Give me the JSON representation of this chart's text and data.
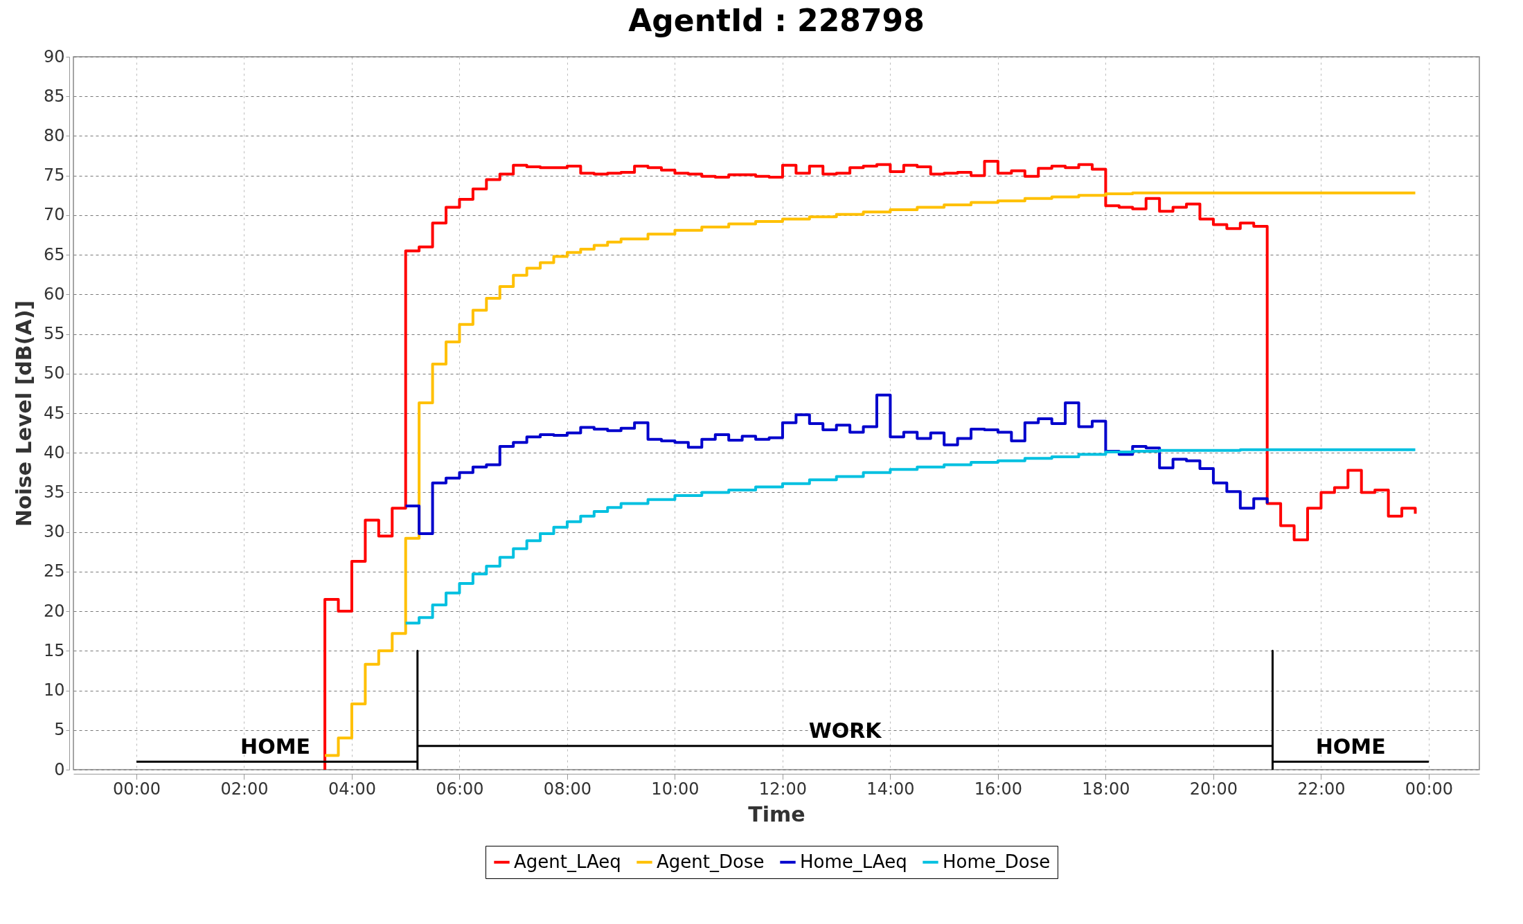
{
  "chart_data": {
    "type": "step",
    "title": "AgentId : 228798",
    "xlabel": "Time",
    "ylabel": "Noise Level [dB(A)]",
    "xlim": [
      -1.17,
      24.94
    ],
    "xticks": [
      {
        "value": 0,
        "label": "00:00"
      },
      {
        "value": 2,
        "label": "02:00"
      },
      {
        "value": 4,
        "label": "04:00"
      },
      {
        "value": 6,
        "label": "06:00"
      },
      {
        "value": 8,
        "label": "08:00"
      },
      {
        "value": 10,
        "label": "10:00"
      },
      {
        "value": 12,
        "label": "12:00"
      },
      {
        "value": 14,
        "label": "14:00"
      },
      {
        "value": 16,
        "label": "16:00"
      },
      {
        "value": 18,
        "label": "18:00"
      },
      {
        "value": 20,
        "label": "20:00"
      },
      {
        "value": 22,
        "label": "22:00"
      },
      {
        "value": 24,
        "label": "00:00"
      }
    ],
    "ylim": [
      0,
      90
    ],
    "yticks": [
      0,
      5,
      10,
      15,
      20,
      25,
      30,
      35,
      40,
      45,
      50,
      55,
      60,
      65,
      70,
      75,
      80,
      85,
      90
    ],
    "grid": true,
    "legend": "bottom",
    "line_style": "solid",
    "series": [
      {
        "name": "Agent_LAeq",
        "color": "#ff0000",
        "x": [
          3.5,
          3.5,
          3.75,
          4,
          4.25,
          4.5,
          4.75,
          5,
          5.25,
          5.5,
          5.75,
          6,
          6.25,
          6.5,
          6.75,
          7,
          7.25,
          7.5,
          7.75,
          8,
          8.25,
          8.5,
          8.75,
          9,
          9.25,
          9.5,
          9.75,
          10,
          10.25,
          10.5,
          10.75,
          11,
          11.25,
          11.5,
          11.75,
          12,
          12.25,
          12.5,
          12.75,
          13,
          13.25,
          13.5,
          13.75,
          14,
          14.25,
          14.5,
          14.75,
          15,
          15.25,
          15.5,
          15.75,
          16,
          16.25,
          16.5,
          16.75,
          17,
          17.25,
          17.5,
          17.75,
          18,
          18.25,
          18.5,
          18.75,
          19,
          19.25,
          19.5,
          19.75,
          20,
          20.25,
          20.5,
          20.75,
          21,
          21.25,
          21.5,
          21.75,
          22,
          22.25,
          22.5,
          22.75,
          23,
          23.25,
          23.5,
          23.75
        ],
        "values": [
          0,
          21.5,
          20,
          26.3,
          31.5,
          29.5,
          33,
          65.5,
          66,
          69,
          71,
          72,
          73.3,
          74.5,
          75.2,
          76.3,
          76.1,
          76,
          76,
          76.2,
          75.3,
          75.2,
          75.3,
          75.4,
          76.2,
          76,
          75.7,
          75.3,
          75.2,
          74.9,
          74.8,
          75.1,
          75.1,
          74.9,
          74.8,
          76.3,
          75.3,
          76.2,
          75.2,
          75.3,
          76,
          76.2,
          76.4,
          75.5,
          76.3,
          76.1,
          75.2,
          75.3,
          75.4,
          75,
          76.8,
          75.3,
          75.6,
          74.9,
          75.9,
          76.2,
          76,
          76.4,
          75.8,
          71.2,
          71,
          70.8,
          72.1,
          70.5,
          71,
          71.4,
          69.5,
          68.8,
          68.3,
          69,
          68.6,
          33.6,
          30.8,
          29,
          33,
          35,
          35.6,
          37.8,
          35,
          35.3,
          32,
          33,
          32.3
        ]
      },
      {
        "name": "Agent_Dose",
        "color": "#ffc000",
        "x": [
          3.5,
          3.75,
          4,
          4.25,
          4.5,
          4.75,
          5,
          5.25,
          5.5,
          5.75,
          6,
          6.25,
          6.5,
          6.75,
          7,
          7.25,
          7.5,
          7.75,
          8,
          8.25,
          8.5,
          8.75,
          9,
          9.5,
          10,
          10.5,
          11,
          11.5,
          12,
          12.5,
          13,
          13.5,
          14,
          14.5,
          15,
          15.5,
          16,
          16.5,
          17,
          17.5,
          18,
          18.5,
          19,
          19.5,
          20,
          20.5,
          21,
          21.5,
          22,
          22.5,
          23,
          23.5,
          23.75
        ],
        "values": [
          1.8,
          4,
          8.3,
          13.3,
          15,
          17.2,
          29.2,
          46.3,
          51.2,
          54,
          56.2,
          58,
          59.5,
          61,
          62.4,
          63.3,
          64,
          64.8,
          65.3,
          65.7,
          66.2,
          66.6,
          67,
          67.6,
          68.1,
          68.5,
          68.9,
          69.2,
          69.5,
          69.8,
          70.1,
          70.4,
          70.7,
          71,
          71.3,
          71.6,
          71.8,
          72.1,
          72.3,
          72.5,
          72.7,
          72.8,
          72.8,
          72.8,
          72.8,
          72.8,
          72.8,
          72.8,
          72.8,
          72.8,
          72.8,
          72.8,
          72.8
        ]
      },
      {
        "name": "Home_LAeq",
        "color": "#0000cc",
        "x": [
          5,
          5.25,
          5.5,
          5.75,
          6,
          6.25,
          6.5,
          6.75,
          7,
          7.25,
          7.5,
          7.75,
          8,
          8.25,
          8.5,
          8.75,
          9,
          9.25,
          9.5,
          9.75,
          10,
          10.25,
          10.5,
          10.75,
          11,
          11.25,
          11.5,
          11.75,
          12,
          12.25,
          12.5,
          12.75,
          13,
          13.25,
          13.5,
          13.75,
          14,
          14.25,
          14.5,
          14.75,
          15,
          15.25,
          15.5,
          15.75,
          16,
          16.25,
          16.5,
          16.75,
          17,
          17.25,
          17.5,
          17.75,
          18,
          18.25,
          18.5,
          18.75,
          19,
          19.25,
          19.5,
          19.75,
          20,
          20.25,
          20.5,
          20.75,
          21
        ],
        "values": [
          33.3,
          29.8,
          36.2,
          36.8,
          37.5,
          38.2,
          38.5,
          40.8,
          41.3,
          42,
          42.3,
          42.2,
          42.5,
          43.2,
          43,
          42.8,
          43.1,
          43.8,
          41.7,
          41.5,
          41.3,
          40.7,
          41.7,
          42.3,
          41.6,
          42.1,
          41.7,
          41.9,
          43.8,
          44.8,
          43.7,
          42.9,
          43.5,
          42.6,
          43.3,
          47.3,
          42,
          42.6,
          41.8,
          42.5,
          41,
          41.8,
          43,
          42.9,
          42.6,
          41.5,
          43.8,
          44.3,
          43.7,
          46.3,
          43.3,
          44,
          40.2,
          39.8,
          40.8,
          40.6,
          38.1,
          39.2,
          39,
          38,
          36.2,
          35.1,
          33,
          34.2,
          33.6
        ]
      },
      {
        "name": "Home_Dose",
        "color": "#00c0e0",
        "x": [
          5,
          5.25,
          5.5,
          5.75,
          6,
          6.25,
          6.5,
          6.75,
          7,
          7.25,
          7.5,
          7.75,
          8,
          8.25,
          8.5,
          8.75,
          9,
          9.5,
          10,
          10.5,
          11,
          11.5,
          12,
          12.5,
          13,
          13.5,
          14,
          14.5,
          15,
          15.5,
          16,
          16.5,
          17,
          17.5,
          18,
          18.5,
          19,
          19.5,
          20,
          20.5,
          21,
          21.5,
          22,
          22.5,
          23,
          23.5,
          23.75
        ],
        "values": [
          18.5,
          19.2,
          20.8,
          22.3,
          23.5,
          24.7,
          25.7,
          26.8,
          27.9,
          28.9,
          29.8,
          30.6,
          31.3,
          32,
          32.6,
          33.1,
          33.6,
          34.1,
          34.6,
          35,
          35.3,
          35.7,
          36.1,
          36.6,
          37,
          37.5,
          37.9,
          38.2,
          38.5,
          38.8,
          39,
          39.3,
          39.5,
          39.8,
          40.1,
          40.2,
          40.3,
          40.3,
          40.3,
          40.4,
          40.4,
          40.4,
          40.4,
          40.4,
          40.4,
          40.4,
          40.4
        ]
      },
      {
        "type": "line",
        "color": "#000000",
        "x": [
          0,
          5.22,
          5.22,
          5.22,
          5.22,
          21.1,
          21.1,
          21.1,
          21.1,
          24
        ],
        "values": [
          1,
          1,
          0,
          15,
          3,
          3,
          0,
          15,
          1,
          1
        ]
      }
    ],
    "annotations": [
      {
        "text": "HOME",
        "x": 2.58,
        "y": 1
      },
      {
        "text": "WORK",
        "x": 13.16,
        "y": 3
      },
      {
        "text": "HOME",
        "x": 22.55,
        "y": 1
      }
    ]
  }
}
